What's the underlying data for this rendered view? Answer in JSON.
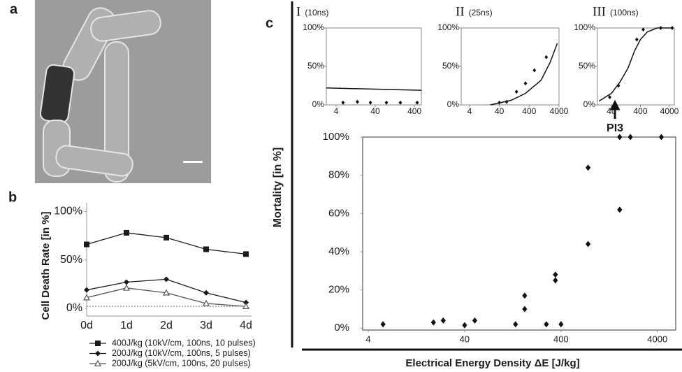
{
  "chart_data": [
    {
      "type": "image",
      "label": "a"
    },
    {
      "type": "line",
      "label": "b",
      "ylabel": "Cell Death Rate [in %]",
      "categories": [
        "0d",
        "1d",
        "2d",
        "3d",
        "4d"
      ],
      "ylim": [
        -8,
        109
      ],
      "yticks": [
        {
          "value": 0,
          "label": "0%"
        },
        {
          "value": 50,
          "label": "50%"
        },
        {
          "value": 100,
          "label": "100%"
        }
      ],
      "series": [
        {
          "name": "400J/kg (10kV/cm, 100ns, 10 pulses)",
          "color": "#1a1a1a",
          "marker": "square",
          "values": [
            66,
            78,
            73,
            61,
            56
          ]
        },
        {
          "name": "200J/kg (10kV/cm, 100ns, 5 pulses)",
          "color": "#1a1a1a",
          "marker": "diamond",
          "values": [
            19,
            27,
            30,
            16,
            6
          ]
        },
        {
          "name": "200J/kg (5kV/cm, 100ns, 20 pulses)",
          "color": "#555555",
          "marker": "triangle",
          "values": [
            11,
            21,
            16,
            5,
            2
          ]
        },
        {
          "color": "#888888",
          "marker": "none",
          "dashed": true,
          "values": [
            2,
            2,
            2,
            2,
            2
          ]
        }
      ]
    },
    {
      "type": "scatter",
      "title": "I",
      "subtitle": "(10ns)",
      "xscale": "log",
      "xlim": [
        2.25,
        600
      ],
      "ylim": [
        0,
        100
      ],
      "xticks": [
        4,
        40,
        400
      ],
      "yticks": [
        {
          "value": 0,
          "label": "0%"
        },
        {
          "value": 50,
          "label": "50%"
        },
        {
          "value": 100,
          "label": "100%"
        }
      ],
      "points": {
        "x": [
          6,
          14,
          30,
          77,
          175,
          470
        ],
        "values": [
          3,
          4,
          3,
          3,
          3,
          3
        ]
      },
      "curve": {
        "x": [
          2.25,
          600
        ],
        "values": [
          22,
          19
        ]
      }
    },
    {
      "type": "scatter",
      "title": "II",
      "subtitle": "(25ns)",
      "xscale": "log",
      "xlim": [
        2.1,
        4000
      ],
      "ylim": [
        0,
        100
      ],
      "xticks": [
        4,
        40,
        400,
        4000
      ],
      "yticks": [
        {
          "value": 0,
          "label": "0%"
        },
        {
          "value": 50,
          "label": "50%"
        },
        {
          "value": 100,
          "label": "100%"
        }
      ],
      "points": {
        "x": [
          40,
          70,
          150,
          300,
          600,
          1500
        ],
        "values": [
          3,
          4,
          17,
          28,
          45,
          62
        ]
      },
      "curve": {
        "x": [
          20,
          100,
          300,
          1000,
          2000,
          3500
        ],
        "values": [
          0,
          6,
          15,
          32,
          55,
          80
        ]
      }
    },
    {
      "type": "scatter",
      "title": "III",
      "subtitle": "(100ns)",
      "xscale": "log",
      "xlim": [
        13.2,
        5900
      ],
      "ylim": [
        0,
        100
      ],
      "xticks": [
        40,
        400,
        4000
      ],
      "yticks": [
        {
          "value": 0,
          "label": "0%"
        },
        {
          "value": 50,
          "label": "50%"
        },
        {
          "value": 100,
          "label": "100%"
        }
      ],
      "points": {
        "x": [
          35,
          70,
          300,
          500,
          2000,
          5000
        ],
        "values": [
          10,
          25,
          85,
          98,
          100,
          100
        ]
      },
      "curve": {
        "x": [
          15,
          40,
          80,
          150,
          250,
          400,
          700,
          1500,
          5000
        ],
        "values": [
          5,
          15,
          30,
          48,
          70,
          85,
          95,
          100,
          100
        ]
      },
      "annotation": {
        "text": "PI3",
        "x": 53
      }
    },
    {
      "type": "scatter",
      "label": "c",
      "ylabel": "Mortality [in %]",
      "xlabel": "Electrical Energy Density ΔE [J/kg]",
      "xscale": "log",
      "xlim": [
        3.5,
        6200
      ],
      "ylim": [
        -1,
        100
      ],
      "xticks": [
        4,
        40,
        400,
        4000
      ],
      "yticks": [
        {
          "value": 0,
          "label": "0%"
        },
        {
          "value": 20,
          "label": "20%"
        },
        {
          "value": 40,
          "label": "40%"
        },
        {
          "value": 60,
          "label": "60%"
        },
        {
          "value": 80,
          "label": "80%"
        },
        {
          "value": 100,
          "label": "100%"
        }
      ],
      "points": {
        "x": [
          5.7,
          19,
          24,
          40,
          51,
          135,
          168,
          168,
          282,
          350,
          350,
          400,
          764,
          764,
          1625,
          1625,
          2100,
          4400
        ],
        "values": [
          2,
          3,
          4,
          1.5,
          4,
          2,
          17,
          10,
          2,
          28,
          25,
          2,
          84,
          44,
          62,
          100,
          100,
          100
        ]
      }
    }
  ]
}
